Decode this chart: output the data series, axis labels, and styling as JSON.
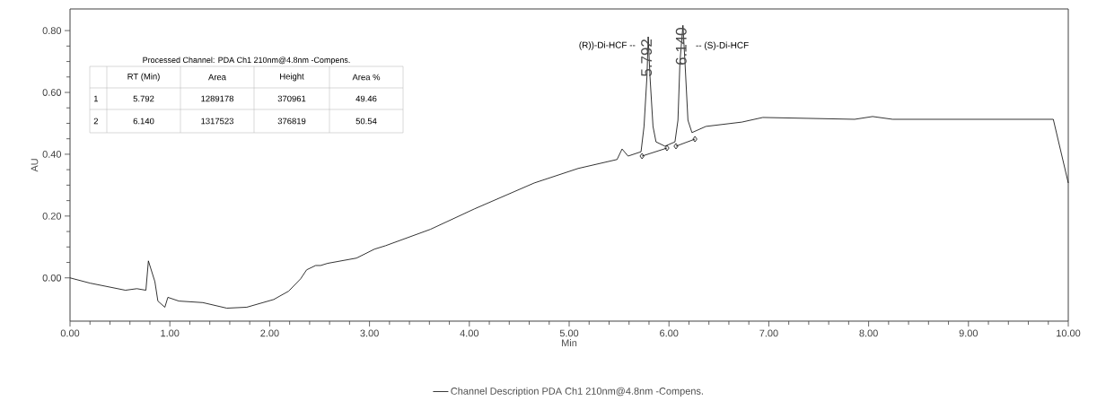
{
  "chart_data": {
    "type": "line",
    "xlabel": "Min",
    "ylabel": "AU",
    "xlim": [
      0,
      10
    ],
    "ylim": [
      -0.14,
      0.87
    ],
    "xticks": [
      {
        "value": 0,
        "label": "0.00"
      },
      {
        "value": 1,
        "label": "1.00"
      },
      {
        "value": 2,
        "label": "2.00"
      },
      {
        "value": 3,
        "label": "3.00"
      },
      {
        "value": 4,
        "label": "4.00"
      },
      {
        "value": 5,
        "label": "5.00"
      },
      {
        "value": 6,
        "label": "6.00"
      },
      {
        "value": 7,
        "label": "7.00"
      },
      {
        "value": 8,
        "label": "8.00"
      },
      {
        "value": 9,
        "label": "9.00"
      },
      {
        "value": 10,
        "label": "10.00"
      }
    ],
    "yticks": [
      {
        "value": 0,
        "label": "0.00"
      },
      {
        "value": 0.2,
        "label": "0.20"
      },
      {
        "value": 0.4,
        "label": "0.40"
      },
      {
        "value": 0.6,
        "label": "0.60"
      },
      {
        "value": 0.8,
        "label": "0.80"
      }
    ],
    "grid": false,
    "legend": "bottom",
    "marker": "none",
    "line_style": "solid",
    "series": [
      {
        "name": "Channel Description PDA Ch1 210nm@4.8nm -Compens.",
        "color": "#000000",
        "x": [
          0,
          0.2,
          0.555,
          0.67,
          0.76,
          0.785,
          0.85,
          0.88,
          0.95,
          0.98,
          1.09,
          1.33,
          1.57,
          1.77,
          2.04,
          2.19,
          2.31,
          2.37,
          2.46,
          2.51,
          2.58,
          2.87,
          3.05,
          3.16,
          3.61,
          4.05,
          4.65,
          5.09,
          5.48,
          5.53,
          5.59,
          5.72,
          5.75,
          5.78,
          5.792,
          5.81,
          5.84,
          5.87,
          5.96,
          6.06,
          6.09,
          6.11,
          6.14,
          6.16,
          6.19,
          6.23,
          6.37,
          6.73,
          6.94,
          7.86,
          8.04,
          8.24,
          9.85,
          10.0
        ],
        "values": [
          0,
          -0.017,
          -0.04,
          -0.035,
          -0.04,
          0.055,
          -0.012,
          -0.075,
          -0.095,
          -0.063,
          -0.075,
          -0.08,
          -0.098,
          -0.095,
          -0.07,
          -0.043,
          -0.003,
          0.026,
          0.04,
          0.04,
          0.047,
          0.064,
          0.093,
          0.104,
          0.157,
          0.223,
          0.307,
          0.354,
          0.383,
          0.417,
          0.394,
          0.408,
          0.49,
          0.655,
          0.78,
          0.65,
          0.49,
          0.44,
          0.426,
          0.44,
          0.51,
          0.7,
          0.817,
          0.7,
          0.51,
          0.47,
          0.49,
          0.504,
          0.519,
          0.513,
          0.522,
          0.513,
          0.513,
          0.307
        ]
      },
      {
        "type": "line",
        "marker": "diamond",
        "color": "#000000",
        "x": [
          5.73,
          5.98
        ],
        "values": [
          0.394,
          0.42
        ]
      },
      {
        "type": "line",
        "marker": "diamond",
        "color": "#000000",
        "x": [
          6.07,
          6.26
        ],
        "values": [
          0.426,
          0.449
        ]
      }
    ],
    "annotations": [
      "(R))-Di-HCF --",
      {
        "text": "5.792",
        "x": 5.792,
        "y": 0.78
      },
      {
        "text": "6.140",
        "x": 6.14,
        "y": 0.817
      },
      "-- (S)-Di-HCF",
      "Processed Channel: PDA Ch1 210nm@4.8nm -Compens.",
      "RT (Min)",
      "Area",
      "Height",
      "Area %",
      "1",
      "5.792",
      "1289178",
      "370961",
      "49.46",
      "2",
      "6.140",
      "1317523",
      "376819",
      "50.54"
    ]
  }
}
